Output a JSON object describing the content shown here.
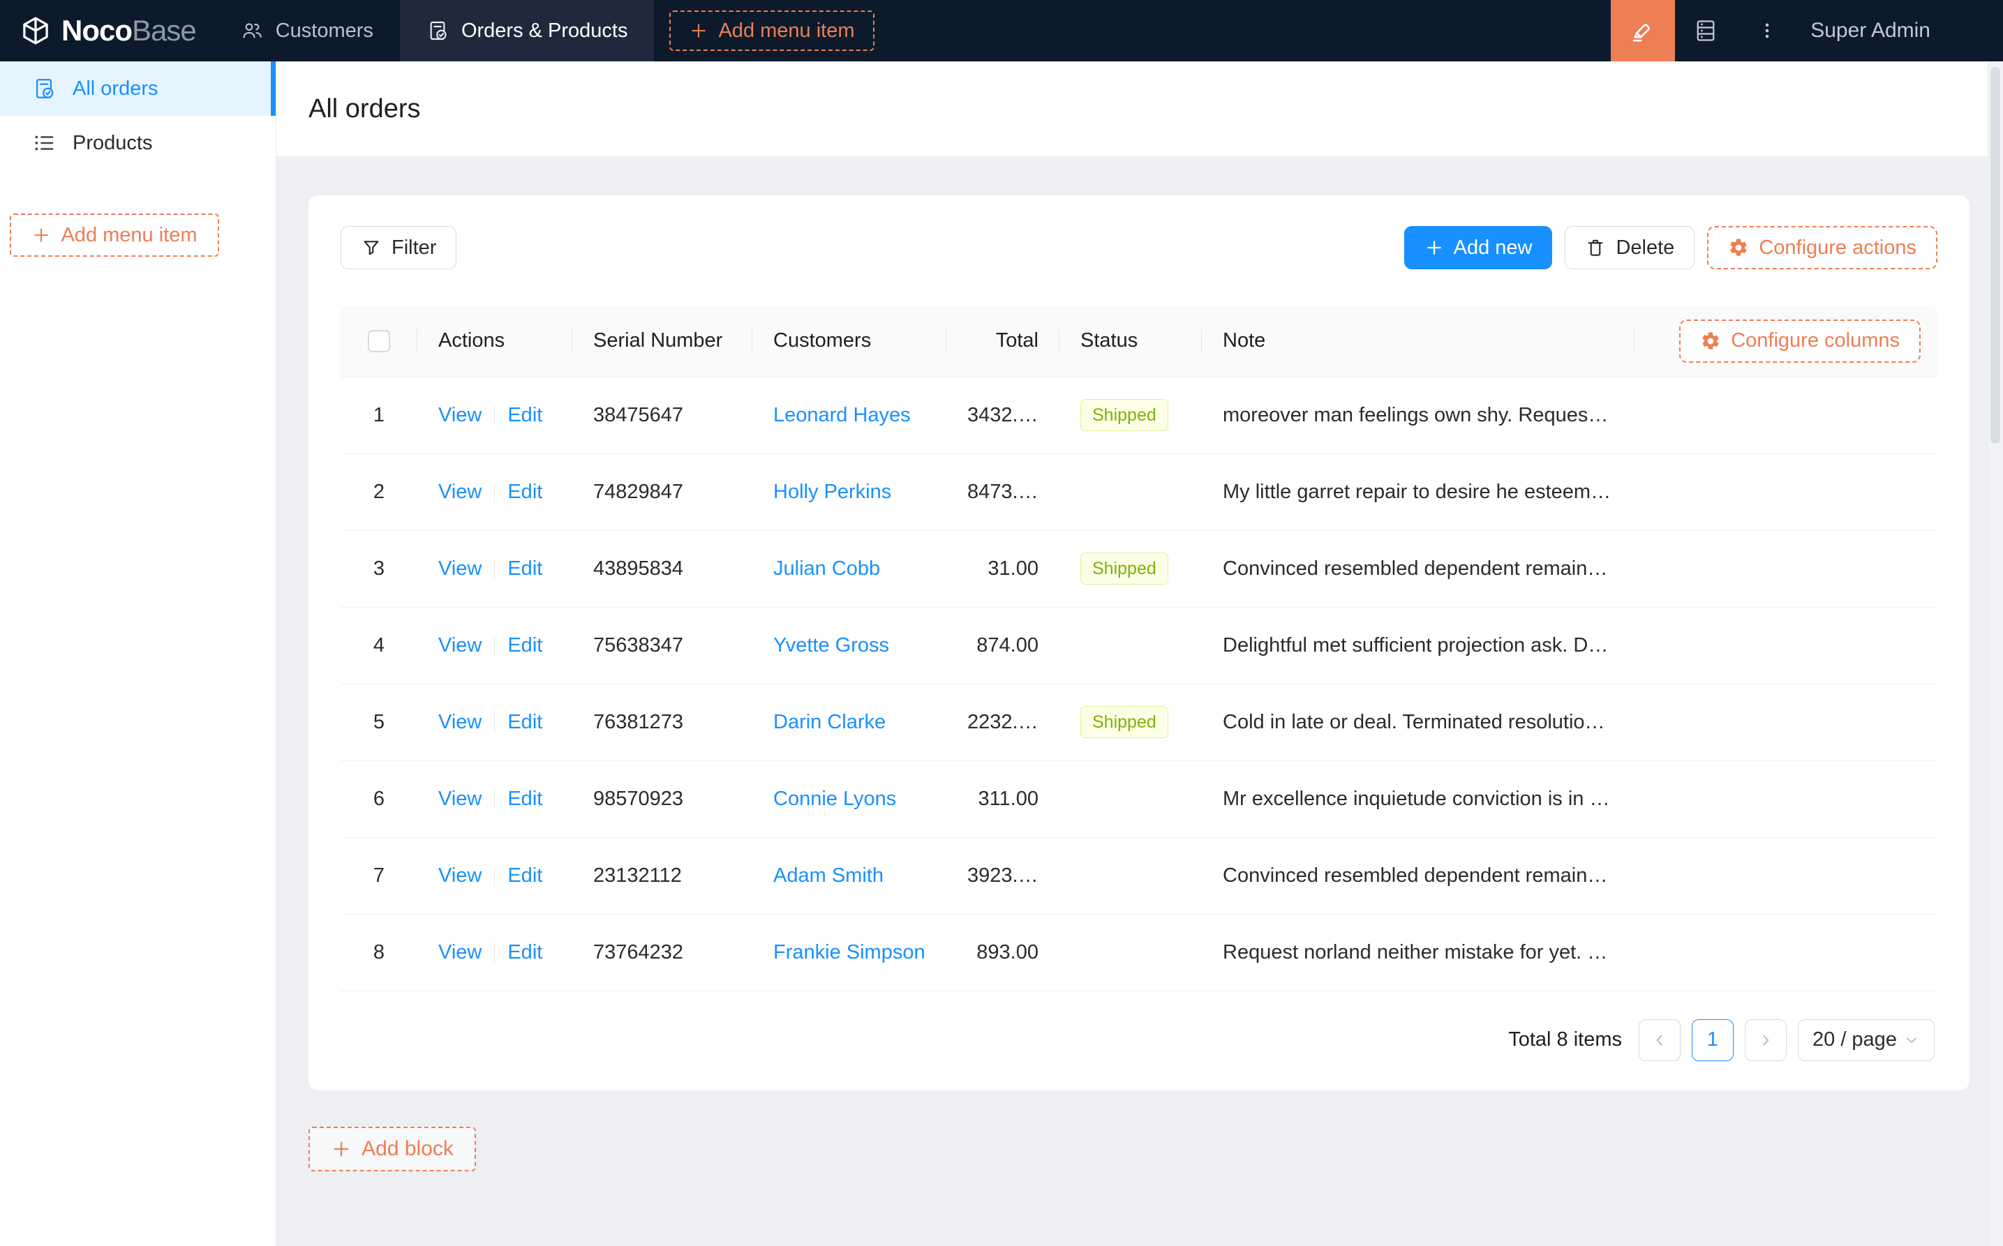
{
  "navbar": {
    "logo": {
      "brand_primary": "Noco",
      "brand_secondary": "Base"
    },
    "tabs": [
      {
        "label": "Customers",
        "icon": "team-icon",
        "active": false
      },
      {
        "label": "Orders & Products",
        "icon": "file-done-icon",
        "active": true
      }
    ],
    "add_menu_item_label": "Add menu item",
    "right": {
      "user_label": "Super Admin"
    }
  },
  "sidebar": {
    "items": [
      {
        "label": "All orders",
        "icon": "file-done-icon",
        "active": true
      },
      {
        "label": "Products",
        "icon": "unordered-list-icon",
        "active": false
      }
    ],
    "add_menu_item_label": "Add menu item"
  },
  "page": {
    "title": "All orders"
  },
  "toolbar": {
    "filter_label": "Filter",
    "add_new_label": "Add new",
    "delete_label": "Delete",
    "configure_actions_label": "Configure actions"
  },
  "table": {
    "headers": [
      "Actions",
      "Serial Number",
      "Customers",
      "Total",
      "Status",
      "Note"
    ],
    "configure_columns_label": "Configure columns",
    "row_actions": {
      "view": "View",
      "edit": "Edit"
    },
    "rows": [
      {
        "index": "1",
        "serial": "38475647",
        "customer": "Leonard Hayes",
        "total": "3432.00",
        "status": "Shipped",
        "note": "moreover man feelings own shy. Request n..."
      },
      {
        "index": "2",
        "serial": "74829847",
        "customer": "Holly Perkins",
        "total": "8473.00",
        "status": "",
        "note": "My little garret repair to desire he esteem. ..."
      },
      {
        "index": "3",
        "serial": "43895834",
        "customer": "Julian Cobb",
        "total": "31.00",
        "status": "Shipped",
        "note": "Convinced resembled dependent remainde..."
      },
      {
        "index": "4",
        "serial": "75638347",
        "customer": "Yvette Gross",
        "total": "874.00",
        "status": "",
        "note": "Delightful met sufficient projection ask. De..."
      },
      {
        "index": "5",
        "serial": "76381273",
        "customer": "Darin Clarke",
        "total": "2232.00",
        "status": "Shipped",
        "note": "Cold in late or deal. Terminated resolution ..."
      },
      {
        "index": "6",
        "serial": "98570923",
        "customer": "Connie Lyons",
        "total": "311.00",
        "status": "",
        "note": "Mr excellence inquietude conviction is in u..."
      },
      {
        "index": "7",
        "serial": "23132112",
        "customer": "Adam Smith",
        "total": "3923.00",
        "status": "",
        "note": "Convinced resembled dependent remainde..."
      },
      {
        "index": "8",
        "serial": "73764232",
        "customer": "Frankie Simpson",
        "total": "893.00",
        "status": "",
        "note": "Request norland neither mistake for yet. Be..."
      }
    ]
  },
  "pagination": {
    "total_label": "Total 8 items",
    "current_page": "1",
    "page_size_label": "20 / page"
  },
  "add_block_label": "Add block",
  "colors": {
    "navbar_bg": "#0c1a2b",
    "accent_orange": "#ed7e54",
    "primary_blue": "#1890ff",
    "sidebar_selected_bg": "#e6f4ff",
    "tag_text": "#7cb305",
    "tag_bg": "#fcffe6",
    "tag_border": "#eaff8f",
    "content_bg": "#edeff2"
  }
}
